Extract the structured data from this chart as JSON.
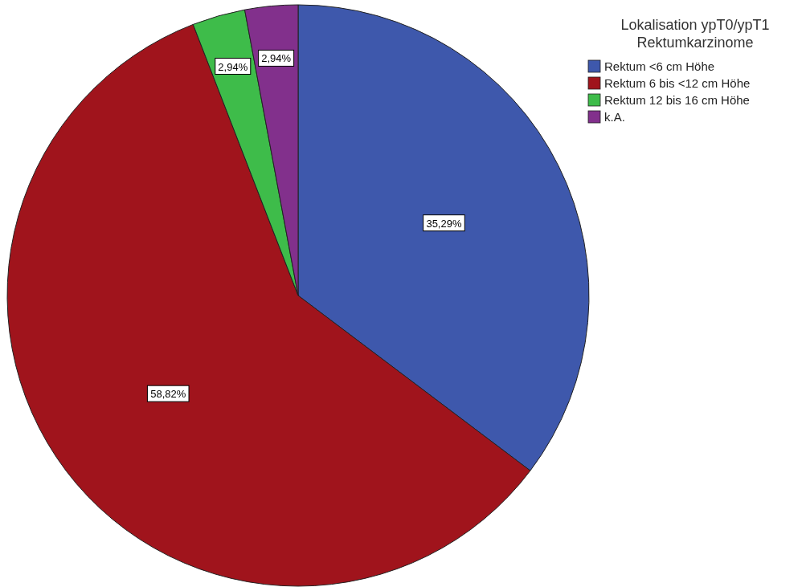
{
  "chart_data": {
    "type": "pie",
    "legend_title": "Lokalisation ypT0/ypT1 Rektumkarzinome",
    "categories": [
      "Rektum <6 cm Höhe",
      "Rektum 6 bis <12 cm Höhe",
      "Rektum 12 bis 16 cm Höhe",
      "k.A."
    ],
    "values": [
      35.29,
      58.82,
      2.94,
      2.94
    ],
    "value_labels": [
      "35,29%",
      "58,82%",
      "2,94%",
      "2,94%"
    ],
    "colors": [
      "#3e58ac",
      "#a0141c",
      "#3ebc4a",
      "#82308c"
    ],
    "legend": "top right"
  }
}
